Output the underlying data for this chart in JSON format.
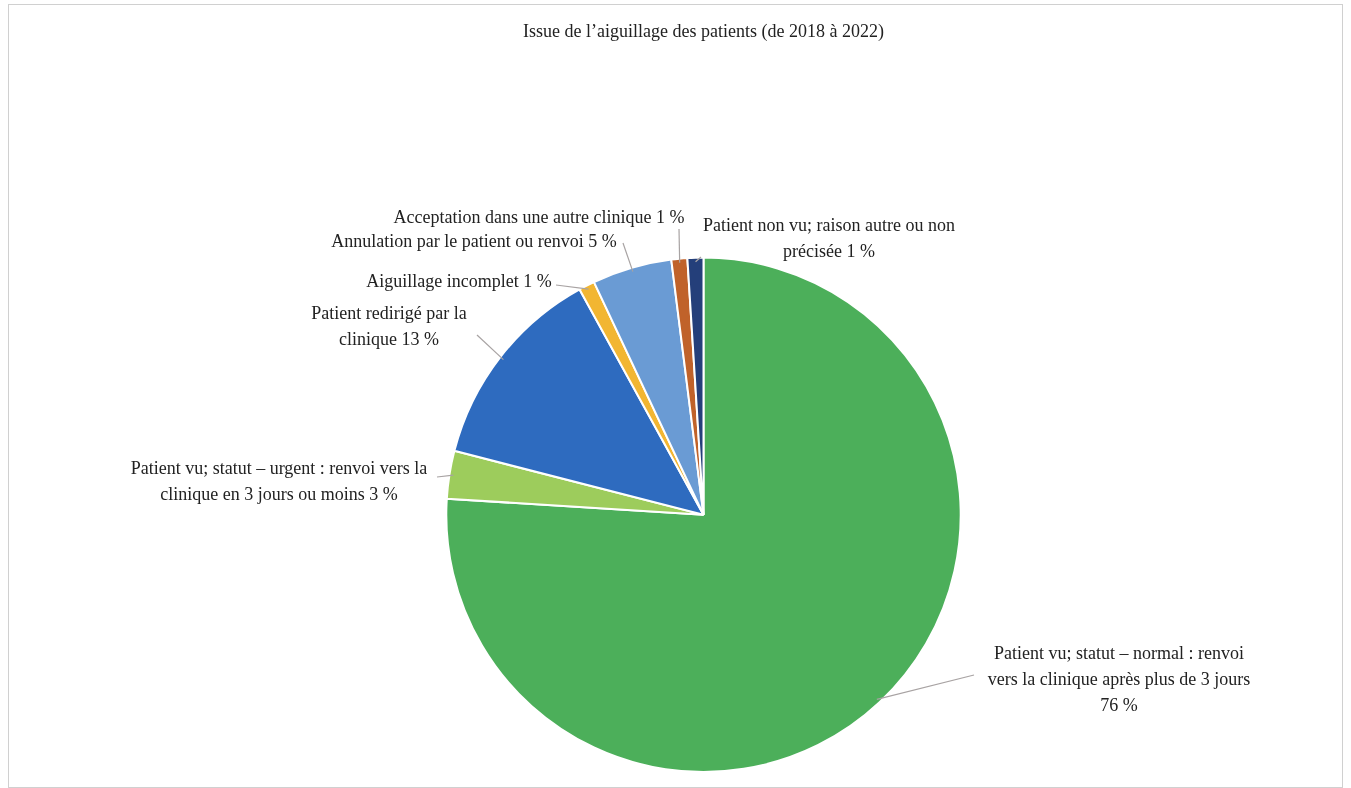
{
  "chart_data": {
    "type": "pie",
    "title": "Issue de l’aiguillage des patients (de 2018 à 2022)",
    "categories": [
      "Patient vu; statut – normal : renvoi vers la clinique après plus de 3 jours",
      "Patient vu; statut – urgent : renvoi vers la clinique en 3 jours ou moins",
      "Patient redirigé par la clinique",
      "Aiguillage incomplet",
      "Annulation par le patient ou renvoi",
      "Acceptation dans une autre clinique",
      "Patient non vu; raison autre ou non précisée"
    ],
    "values": [
      76,
      3,
      13,
      1,
      5,
      1,
      1
    ],
    "value_labels": [
      "76 %",
      "3 %",
      "13 %",
      "1 %",
      "5 %",
      "1 %",
      "1 %"
    ],
    "colors": [
      "#4caf5a",
      "#9dcc5c",
      "#2e6bbf",
      "#f2b632",
      "#6a9bd4",
      "#c0622a",
      "#243f7a"
    ],
    "legend": false
  }
}
